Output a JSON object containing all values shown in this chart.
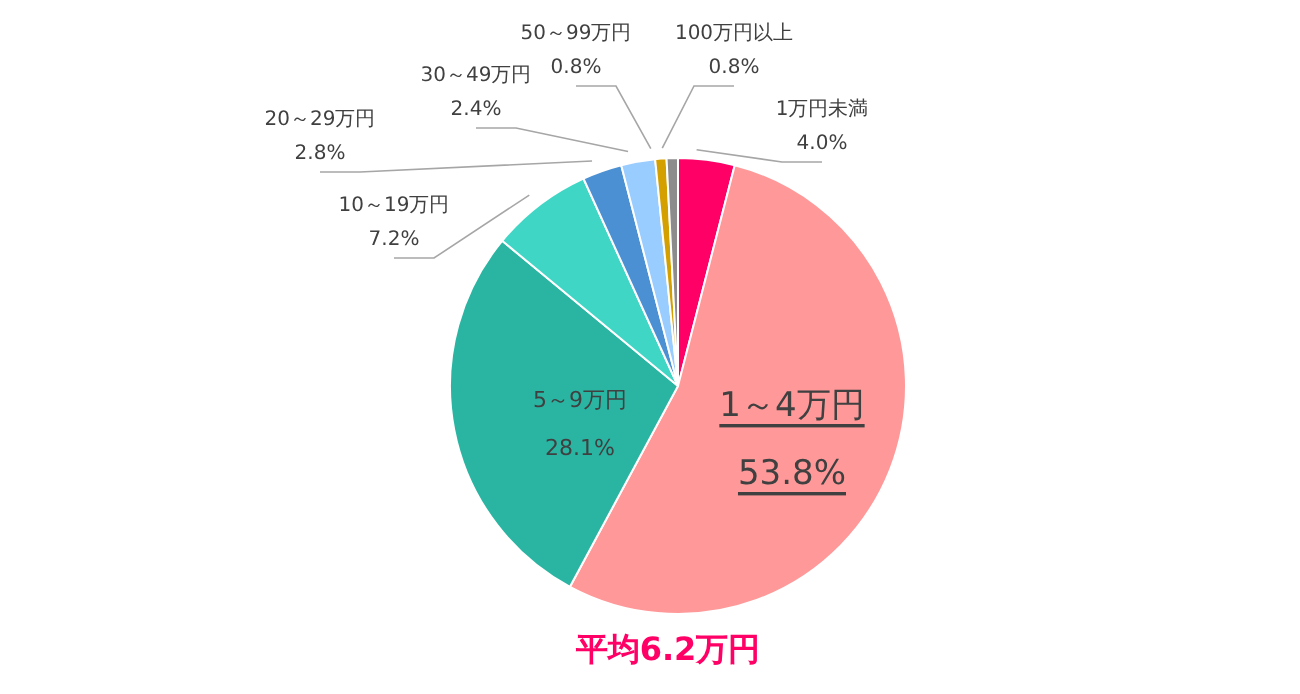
{
  "chart_data": {
    "type": "pie",
    "categories": [
      "1万円未満",
      "1～4万円",
      "5～9万円",
      "10～19万円",
      "20～29万円",
      "30～49万円",
      "50～99万円",
      "100万円以上"
    ],
    "values": [
      4.0,
      53.8,
      28.1,
      7.2,
      2.8,
      2.4,
      0.8,
      0.8
    ],
    "colors": [
      "#ff0066",
      "#ff9999",
      "#2ab5a3",
      "#40d6c5",
      "#4a90d2",
      "#99ccff",
      "#d4a000",
      "#8c8c8c"
    ],
    "value_labels": [
      "4.0%",
      "53.8%",
      "28.1%",
      "7.2%",
      "2.8%",
      "2.4%",
      "0.8%",
      "0.8%"
    ],
    "legend": false,
    "annotations": [
      "平均6.2万円"
    ]
  }
}
